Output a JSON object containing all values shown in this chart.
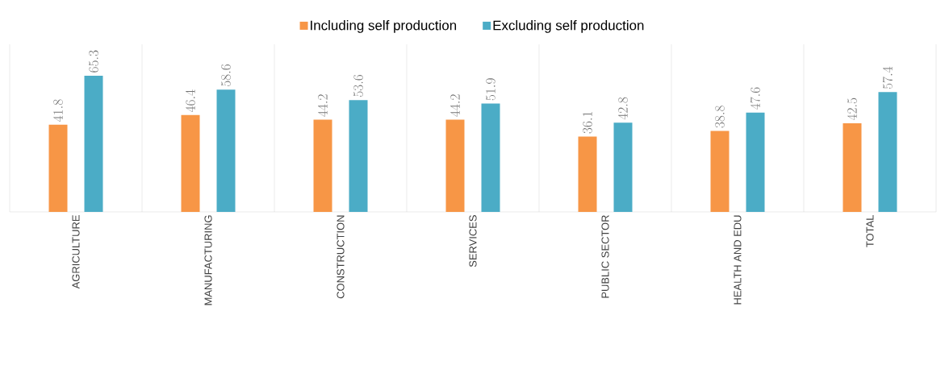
{
  "chart_data": {
    "type": "bar",
    "categories": [
      "AGRICULTURE",
      "MANUFACTURING",
      "CONSTRUCTION",
      "SERVICES",
      "PUBLIC SECTOR",
      "HEALTH AND EDU",
      "TOTAL"
    ],
    "series": [
      {
        "name": "Including self production",
        "color": "#f79646",
        "values": [
          41.8,
          46.4,
          44.2,
          44.2,
          36.1,
          38.8,
          42.5
        ]
      },
      {
        "name": "Excluding self production",
        "color": "#4bacc6",
        "values": [
          65.3,
          58.6,
          53.6,
          51.9,
          42.8,
          47.6,
          57.4
        ]
      }
    ],
    "data_labels": true,
    "legend": "top",
    "grid": "x"
  }
}
